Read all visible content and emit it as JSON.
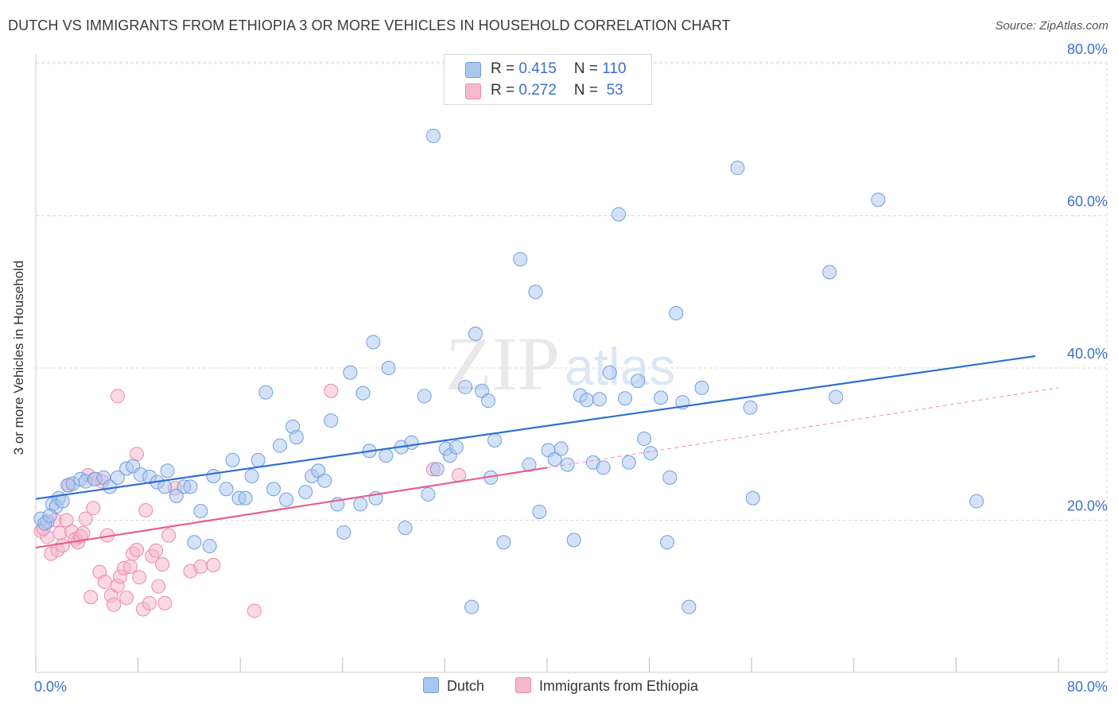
{
  "title": "DUTCH VS IMMIGRANTS FROM ETHIOPIA 3 OR MORE VEHICLES IN HOUSEHOLD CORRELATION CHART",
  "source": "Source: ZipAtlas.com",
  "watermark": {
    "zip": "ZIP",
    "atlas": "atlas"
  },
  "colors": {
    "dutch_fill": "#a9c6f0",
    "dutch_stroke": "#6f9ee0",
    "dutch_line": "#2f6fd0",
    "eth_fill": "#f6b8cd",
    "eth_stroke": "#e98aab",
    "eth_line": "#e6608f",
    "grid": "#dcdcdc",
    "tick_label": "#3b6fd0"
  },
  "legend": {
    "dutch": {
      "r_label": "R = ",
      "r_value": "0.415",
      "n_label": "N = ",
      "n_value": "110"
    },
    "ethiopia": {
      "r_label": "R = ",
      "r_value": "0.272",
      "n_label": "N = ",
      "n_value": " 53"
    }
  },
  "bottom_legend": {
    "dutch": "Dutch",
    "ethiopia": "Immigrants from Ethiopia"
  },
  "chart_data": {
    "type": "scatter",
    "title": "DUTCH VS IMMIGRANTS FROM ETHIOPIA 3 OR MORE VEHICLES IN HOUSEHOLD CORRELATION CHART",
    "xlabel": "",
    "ylabel": "3 or more Vehicles in Household",
    "xlim": [
      0,
      80
    ],
    "ylim": [
      0,
      80
    ],
    "x_tick_labels": [
      "0.0%",
      "80.0%"
    ],
    "y_ticks": [
      20,
      40,
      60,
      80
    ],
    "y_tick_labels": [
      "20.0%",
      "40.0%",
      "60.0%",
      "80.0%"
    ],
    "grid": true,
    "legend_position": "top-center",
    "series": [
      {
        "name": "Dutch",
        "R": 0.415,
        "N": 110,
        "trend": {
          "x": [
            0,
            80
          ],
          "y": [
            22.8,
            42.0
          ],
          "style": "solid"
        },
        "points": [
          [
            0.4,
            20.2
          ],
          [
            0.9,
            19.8
          ],
          [
            1.3,
            22.1
          ],
          [
            1.8,
            22.9
          ],
          [
            2.5,
            24.6
          ],
          [
            2.9,
            24.8
          ],
          [
            3.5,
            25.4
          ],
          [
            3.9,
            25.1
          ],
          [
            4.6,
            25.4
          ],
          [
            5.3,
            25.6
          ],
          [
            5.8,
            24.4
          ],
          [
            6.4,
            25.6
          ],
          [
            7.1,
            26.8
          ],
          [
            7.6,
            27.1
          ],
          [
            8.2,
            26.0
          ],
          [
            8.9,
            25.7
          ],
          [
            9.5,
            25.0
          ],
          [
            10.1,
            24.4
          ],
          [
            10.3,
            26.5
          ],
          [
            11.0,
            23.2
          ],
          [
            11.6,
            24.4
          ],
          [
            12.1,
            24.4
          ],
          [
            12.4,
            17.1
          ],
          [
            12.9,
            21.2
          ],
          [
            13.6,
            16.6
          ],
          [
            13.9,
            25.8
          ],
          [
            14.9,
            24.1
          ],
          [
            15.4,
            27.9
          ],
          [
            15.9,
            22.9
          ],
          [
            16.4,
            22.9
          ],
          [
            16.9,
            25.8
          ],
          [
            17.4,
            27.9
          ],
          [
            18.0,
            36.8
          ],
          [
            18.6,
            24.1
          ],
          [
            19.1,
            29.8
          ],
          [
            19.6,
            22.7
          ],
          [
            20.1,
            32.3
          ],
          [
            20.4,
            30.9
          ],
          [
            21.1,
            23.7
          ],
          [
            21.6,
            25.8
          ],
          [
            22.1,
            26.5
          ],
          [
            22.6,
            25.2
          ],
          [
            23.1,
            33.1
          ],
          [
            23.6,
            22.1
          ],
          [
            24.1,
            18.4
          ],
          [
            24.6,
            39.4
          ],
          [
            25.4,
            22.1
          ],
          [
            25.6,
            36.7
          ],
          [
            26.1,
            29.1
          ],
          [
            26.6,
            22.9
          ],
          [
            27.4,
            28.5
          ],
          [
            27.6,
            40.0
          ],
          [
            28.6,
            29.6
          ],
          [
            28.9,
            19.0
          ],
          [
            29.4,
            30.2
          ],
          [
            30.4,
            36.3
          ],
          [
            30.7,
            23.4
          ],
          [
            31.1,
            70.5
          ],
          [
            31.4,
            26.7
          ],
          [
            32.1,
            29.4
          ],
          [
            32.4,
            28.5
          ],
          [
            32.9,
            29.6
          ],
          [
            33.6,
            37.5
          ],
          [
            34.1,
            8.6
          ],
          [
            34.4,
            44.5
          ],
          [
            34.9,
            37.0
          ],
          [
            35.4,
            35.7
          ],
          [
            35.6,
            25.6
          ],
          [
            35.9,
            30.5
          ],
          [
            36.6,
            17.1
          ],
          [
            37.9,
            54.3
          ],
          [
            38.6,
            27.3
          ],
          [
            39.1,
            50.0
          ],
          [
            39.4,
            21.1
          ],
          [
            40.1,
            29.2
          ],
          [
            40.6,
            28.0
          ],
          [
            41.1,
            29.4
          ],
          [
            41.6,
            27.3
          ],
          [
            42.1,
            17.4
          ],
          [
            42.6,
            36.4
          ],
          [
            43.1,
            35.8
          ],
          [
            43.6,
            27.6
          ],
          [
            44.1,
            35.9
          ],
          [
            44.4,
            26.9
          ],
          [
            44.9,
            39.4
          ],
          [
            45.6,
            60.2
          ],
          [
            46.1,
            36.0
          ],
          [
            46.4,
            27.6
          ],
          [
            47.1,
            38.3
          ],
          [
            47.6,
            30.7
          ],
          [
            48.1,
            28.8
          ],
          [
            48.9,
            36.1
          ],
          [
            49.4,
            17.1
          ],
          [
            49.6,
            25.6
          ],
          [
            50.1,
            47.2
          ],
          [
            50.6,
            35.5
          ],
          [
            51.1,
            8.6
          ],
          [
            52.1,
            37.4
          ],
          [
            54.9,
            66.3
          ],
          [
            55.9,
            34.8
          ],
          [
            56.1,
            22.9
          ],
          [
            62.1,
            52.6
          ],
          [
            62.6,
            36.2
          ],
          [
            65.9,
            62.1
          ],
          [
            73.6,
            22.5
          ],
          [
            26.4,
            43.4
          ],
          [
            1.6,
            21.8
          ],
          [
            2.1,
            22.5
          ],
          [
            0.7,
            19.6
          ],
          [
            1.1,
            20.6
          ]
        ]
      },
      {
        "name": "Immigrants from Ethiopia",
        "R": 0.272,
        "N": 53,
        "trend": {
          "x": [
            0,
            40
          ],
          "y": [
            16.4,
            26.9
          ],
          "dashed_extension_to": [
            80,
            37.4
          ]
        },
        "points": [
          [
            0.4,
            18.6
          ],
          [
            0.9,
            17.8
          ],
          [
            1.2,
            15.6
          ],
          [
            1.5,
            20.0
          ],
          [
            1.7,
            16.1
          ],
          [
            1.9,
            18.3
          ],
          [
            2.1,
            16.7
          ],
          [
            2.4,
            20.0
          ],
          [
            2.6,
            24.6
          ],
          [
            2.8,
            18.5
          ],
          [
            3.1,
            17.5
          ],
          [
            3.3,
            17.1
          ],
          [
            3.5,
            17.9
          ],
          [
            3.7,
            18.3
          ],
          [
            3.9,
            20.2
          ],
          [
            4.1,
            25.9
          ],
          [
            4.3,
            9.9
          ],
          [
            4.5,
            21.6
          ],
          [
            4.7,
            25.4
          ],
          [
            5.0,
            13.2
          ],
          [
            5.2,
            25.1
          ],
          [
            5.4,
            11.9
          ],
          [
            5.6,
            18.0
          ],
          [
            5.9,
            10.1
          ],
          [
            6.1,
            8.9
          ],
          [
            6.4,
            11.4
          ],
          [
            6.6,
            12.6
          ],
          [
            6.9,
            13.7
          ],
          [
            7.1,
            9.8
          ],
          [
            7.4,
            13.9
          ],
          [
            7.6,
            15.6
          ],
          [
            7.9,
            16.1
          ],
          [
            8.1,
            12.5
          ],
          [
            8.4,
            8.3
          ],
          [
            8.6,
            21.3
          ],
          [
            8.9,
            9.1
          ],
          [
            9.1,
            15.3
          ],
          [
            9.4,
            16.0
          ],
          [
            9.6,
            11.3
          ],
          [
            9.9,
            14.2
          ],
          [
            10.1,
            9.1
          ],
          [
            10.4,
            18.0
          ],
          [
            10.9,
            24.2
          ],
          [
            12.1,
            13.3
          ],
          [
            12.9,
            13.9
          ],
          [
            13.9,
            14.1
          ],
          [
            17.1,
            8.1
          ],
          [
            23.1,
            37.0
          ],
          [
            31.1,
            26.7
          ],
          [
            33.1,
            25.9
          ],
          [
            6.4,
            36.3
          ],
          [
            7.9,
            28.7
          ],
          [
            0.6,
            18.9
          ]
        ]
      }
    ]
  }
}
